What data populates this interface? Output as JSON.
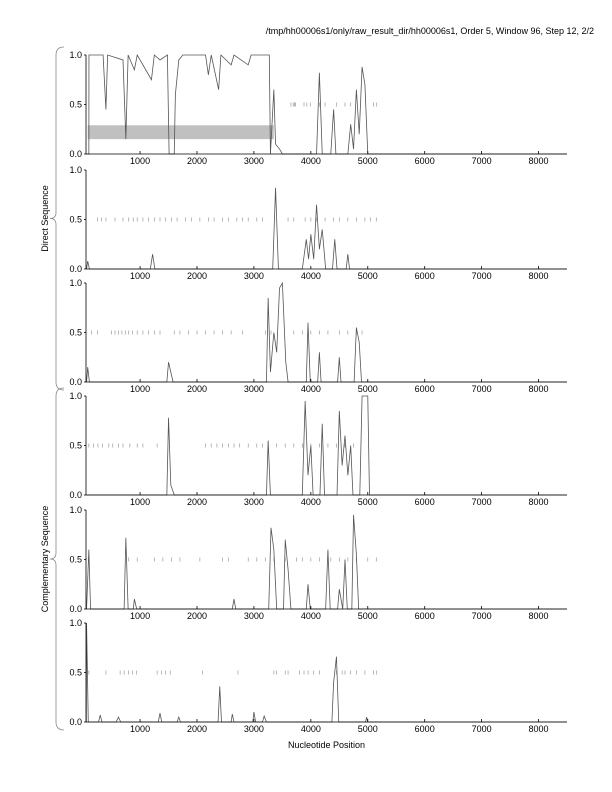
{
  "title": "/tmp/hh00006s1/only/raw_result_dir/hh00006s1, Order 5, Window 96, Step 12, 2/2",
  "colors": {
    "line": "#555555",
    "band": "#c0c0c0",
    "stop_ticks": "#999999",
    "axis": "#000000"
  },
  "chart_data": {
    "type": "line",
    "xlabel": "Nucleotide Position",
    "group_labels": [
      "Direct Sequence",
      "Complementary Sequence"
    ],
    "xlim": [
      50,
      8500
    ],
    "ylim": [
      0,
      1
    ],
    "xticks": [
      1000,
      2000,
      3000,
      4000,
      5000,
      6000,
      7000,
      8000
    ],
    "yticks": [
      "0.0",
      "0.5",
      "1.0"
    ],
    "grid": false,
    "panels": [
      {
        "group": "Direct Sequence",
        "band": {
          "x": [
            80,
            3350
          ],
          "y": [
            0.15,
            0.29
          ]
        },
        "points": [
          [
            60,
            0
          ],
          [
            100,
            0
          ],
          [
            102,
            1
          ],
          [
            350,
            1
          ],
          [
            400,
            0.45
          ],
          [
            430,
            1
          ],
          [
            700,
            0.95
          ],
          [
            750,
            0.15
          ],
          [
            790,
            1
          ],
          [
            900,
            0.85
          ],
          [
            950,
            1
          ],
          [
            1200,
            0.75
          ],
          [
            1250,
            1
          ],
          [
            1350,
            0.95
          ],
          [
            1480,
            1
          ],
          [
            1510,
            0
          ],
          [
            1600,
            0
          ],
          [
            1620,
            0.6
          ],
          [
            1680,
            0.95
          ],
          [
            1750,
            1
          ],
          [
            2150,
            1
          ],
          [
            2200,
            0.8
          ],
          [
            2250,
            1
          ],
          [
            2380,
            0.65
          ],
          [
            2420,
            1
          ],
          [
            2600,
            0.9
          ],
          [
            2650,
            1
          ],
          [
            2900,
            0.9
          ],
          [
            2950,
            1
          ],
          [
            3270,
            1
          ],
          [
            3290,
            0
          ],
          [
            3350,
            0.65
          ],
          [
            3380,
            0.1
          ],
          [
            3450,
            0.05
          ],
          [
            3500,
            0
          ],
          [
            4100,
            0
          ],
          [
            4150,
            0.82
          ],
          [
            4200,
            0
          ],
          [
            4350,
            0
          ],
          [
            4400,
            0.45
          ],
          [
            4440,
            0
          ],
          [
            4650,
            0
          ],
          [
            4700,
            0.3
          ],
          [
            4750,
            0.05
          ],
          [
            4800,
            0.65
          ],
          [
            4850,
            0.2
          ],
          [
            4900,
            0.88
          ],
          [
            4950,
            0.7
          ],
          [
            5000,
            0
          ],
          [
            8500,
            0
          ]
        ],
        "stops": [
          3650,
          3690,
          3710,
          3730,
          3880,
          3930,
          3990,
          4150,
          4250,
          4450,
          4600,
          4700,
          5100,
          5150
        ]
      },
      {
        "group": "Direct Sequence",
        "points": [
          [
            60,
            0
          ],
          [
            80,
            0.08
          ],
          [
            110,
            0
          ],
          [
            1180,
            0
          ],
          [
            1220,
            0.15
          ],
          [
            1260,
            0
          ],
          [
            3330,
            0
          ],
          [
            3380,
            0.82
          ],
          [
            3430,
            0
          ],
          [
            3850,
            0
          ],
          [
            3920,
            0.3
          ],
          [
            3960,
            0.1
          ],
          [
            4000,
            0.35
          ],
          [
            4050,
            0.1
          ],
          [
            4100,
            0.65
          ],
          [
            4150,
            0.2
          ],
          [
            4200,
            0.4
          ],
          [
            4260,
            0
          ],
          [
            4380,
            0
          ],
          [
            4420,
            0.3
          ],
          [
            4460,
            0
          ],
          [
            4620,
            0
          ],
          [
            4650,
            0.15
          ],
          [
            4680,
            0
          ],
          [
            8500,
            0
          ]
        ],
        "stops": [
          250,
          320,
          400,
          560,
          700,
          800,
          880,
          950,
          1050,
          1150,
          1250,
          1350,
          1450,
          1550,
          1650,
          1800,
          1900,
          2050,
          2200,
          2300,
          2450,
          2550,
          2700,
          2800,
          2900,
          3050,
          3150,
          3600,
          3700,
          3900,
          4000,
          4100,
          4250,
          4400,
          4500,
          4650,
          4800,
          4950,
          5050,
          5150
        ]
      },
      {
        "group": "Direct Sequence",
        "points": [
          [
            60,
            0
          ],
          [
            80,
            0.15
          ],
          [
            110,
            0
          ],
          [
            1470,
            0
          ],
          [
            1500,
            0.2
          ],
          [
            1540,
            0.1
          ],
          [
            1580,
            0
          ],
          [
            3220,
            0
          ],
          [
            3250,
            0.85
          ],
          [
            3290,
            0.1
          ],
          [
            3350,
            0.5
          ],
          [
            3400,
            0.3
          ],
          [
            3450,
            0.95
          ],
          [
            3500,
            1.0
          ],
          [
            3560,
            0.2
          ],
          [
            3600,
            0
          ],
          [
            3920,
            0
          ],
          [
            3950,
            0.6
          ],
          [
            3990,
            0
          ],
          [
            4120,
            0
          ],
          [
            4150,
            0.3
          ],
          [
            4180,
            0
          ],
          [
            4470,
            0
          ],
          [
            4500,
            0.25
          ],
          [
            4530,
            0
          ],
          [
            4760,
            0
          ],
          [
            4800,
            0.55
          ],
          [
            4850,
            0.4
          ],
          [
            4890,
            0
          ],
          [
            8500,
            0
          ]
        ],
        "stops": [
          150,
          250,
          500,
          560,
          620,
          680,
          740,
          800,
          870,
          950,
          1050,
          1150,
          1250,
          1350,
          1600,
          1700,
          1850,
          2000,
          2150,
          2300,
          2450,
          2600,
          2800,
          3200,
          3300,
          3700,
          3850,
          4000,
          4150,
          4300,
          4500,
          4650,
          4800,
          4900
        ]
      },
      {
        "group": "Complementary Sequence",
        "points": [
          [
            60,
            0
          ],
          [
            1470,
            0
          ],
          [
            1500,
            0.78
          ],
          [
            1540,
            0.1
          ],
          [
            1600,
            0
          ],
          [
            3220,
            0
          ],
          [
            3250,
            0.55
          ],
          [
            3290,
            0
          ],
          [
            3850,
            0
          ],
          [
            3900,
            0.95
          ],
          [
            3950,
            0.2
          ],
          [
            4000,
            0.5
          ],
          [
            4040,
            0
          ],
          [
            4160,
            0
          ],
          [
            4200,
            0.72
          ],
          [
            4240,
            0
          ],
          [
            4460,
            0
          ],
          [
            4500,
            0.85
          ],
          [
            4550,
            0.3
          ],
          [
            4600,
            0.6
          ],
          [
            4650,
            0.2
          ],
          [
            4700,
            0.5
          ],
          [
            4740,
            0
          ],
          [
            4860,
            0
          ],
          [
            4900,
            1.0
          ],
          [
            5000,
            1.0
          ],
          [
            5030,
            0
          ],
          [
            8500,
            0
          ]
        ],
        "stops": [
          100,
          180,
          260,
          340,
          450,
          520,
          620,
          700,
          820,
          950,
          1050,
          1300,
          2150,
          2250,
          2350,
          2450,
          2550,
          2650,
          2750,
          2900,
          3050,
          3150,
          3400,
          3550,
          3700,
          3850,
          4000,
          4150,
          4300,
          4450,
          4600,
          4750
        ]
      },
      {
        "group": "Complementary Sequence",
        "points": [
          [
            60,
            0
          ],
          [
            80,
            0.3
          ],
          [
            100,
            0.6
          ],
          [
            130,
            0
          ],
          [
            720,
            0
          ],
          [
            750,
            0.72
          ],
          [
            790,
            0
          ],
          [
            880,
            0
          ],
          [
            900,
            0.1
          ],
          [
            940,
            0
          ],
          [
            2620,
            0
          ],
          [
            2650,
            0.1
          ],
          [
            2680,
            0
          ],
          [
            3260,
            0
          ],
          [
            3300,
            0.82
          ],
          [
            3350,
            0.6
          ],
          [
            3400,
            0
          ],
          [
            3520,
            0
          ],
          [
            3550,
            0.7
          ],
          [
            3600,
            0.4
          ],
          [
            3650,
            0
          ],
          [
            3920,
            0
          ],
          [
            3950,
            0.25
          ],
          [
            3990,
            0
          ],
          [
            4260,
            0
          ],
          [
            4300,
            0.6
          ],
          [
            4340,
            0
          ],
          [
            4470,
            0
          ],
          [
            4500,
            0.2
          ],
          [
            4560,
            0
          ],
          [
            4600,
            0.5
          ],
          [
            4640,
            0
          ],
          [
            4720,
            0
          ],
          [
            4750,
            0.95
          ],
          [
            4800,
            0.55
          ],
          [
            4840,
            0
          ],
          [
            8500,
            0
          ]
        ],
        "stops": [
          800,
          950,
          1250,
          1400,
          1550,
          1700,
          2050,
          2450,
          2550,
          2900,
          3050,
          3200,
          3350,
          3550,
          3750,
          3850,
          4000,
          4150,
          4350,
          4500,
          4650,
          4800,
          5000,
          5150
        ]
      },
      {
        "group": "Complementary Sequence",
        "points": [
          [
            55,
            0
          ],
          [
            60,
            1.0
          ],
          [
            90,
            0
          ],
          [
            270,
            0
          ],
          [
            300,
            0.07
          ],
          [
            330,
            0
          ],
          [
            580,
            0
          ],
          [
            620,
            0.05
          ],
          [
            660,
            0
          ],
          [
            1320,
            0
          ],
          [
            1350,
            0.09
          ],
          [
            1380,
            0
          ],
          [
            1650,
            0
          ],
          [
            1680,
            0.05
          ],
          [
            1710,
            0
          ],
          [
            2370,
            0
          ],
          [
            2400,
            0.36
          ],
          [
            2430,
            0
          ],
          [
            2600,
            0
          ],
          [
            2620,
            0.08
          ],
          [
            2650,
            0
          ],
          [
            2980,
            0
          ],
          [
            3000,
            0.1
          ],
          [
            3030,
            0
          ],
          [
            3150,
            0
          ],
          [
            3180,
            0.06
          ],
          [
            3220,
            0
          ],
          [
            4370,
            0
          ],
          [
            4400,
            0.4
          ],
          [
            4450,
            0.66
          ],
          [
            4490,
            0
          ],
          [
            4960,
            0
          ],
          [
            4980,
            0.05
          ],
          [
            5000,
            0
          ],
          [
            8500,
            0
          ]
        ],
        "stops": [
          100,
          400,
          650,
          720,
          800,
          870,
          940,
          1300,
          1380,
          1450,
          1530,
          2100,
          2720,
          3350,
          3400,
          3550,
          3600,
          3800,
          3880,
          3950,
          4050,
          4150,
          4450,
          4550,
          4600,
          4700,
          4800,
          4950,
          5100,
          5150
        ]
      }
    ]
  }
}
